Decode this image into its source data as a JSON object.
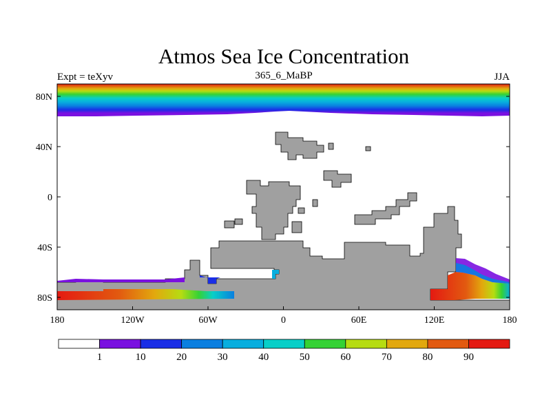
{
  "title": "Atmos Sea Ice Concentration",
  "left_string": "Expt = teXyv",
  "center_string": "365_6_MaBP",
  "right_string": "JJA",
  "y_ticks": [
    "80N",
    "40N",
    "0",
    "40S",
    "80S"
  ],
  "x_ticks": [
    "180",
    "120W",
    "60W",
    "0",
    "60E",
    "120E",
    "180"
  ],
  "colorbar": {
    "labels": [
      "1",
      "10",
      "20",
      "30",
      "40",
      "50",
      "60",
      "70",
      "80",
      "90"
    ],
    "colors": [
      "#ffffff",
      "#7a10e0",
      "#1a2ee6",
      "#0a7fe0",
      "#08aede",
      "#08cfc8",
      "#35d235",
      "#b6dc12",
      "#e2a80e",
      "#e25a10",
      "#e41a12"
    ]
  },
  "colors": {
    "land": "#a0a0a0",
    "ocean": "#ffffff"
  }
}
